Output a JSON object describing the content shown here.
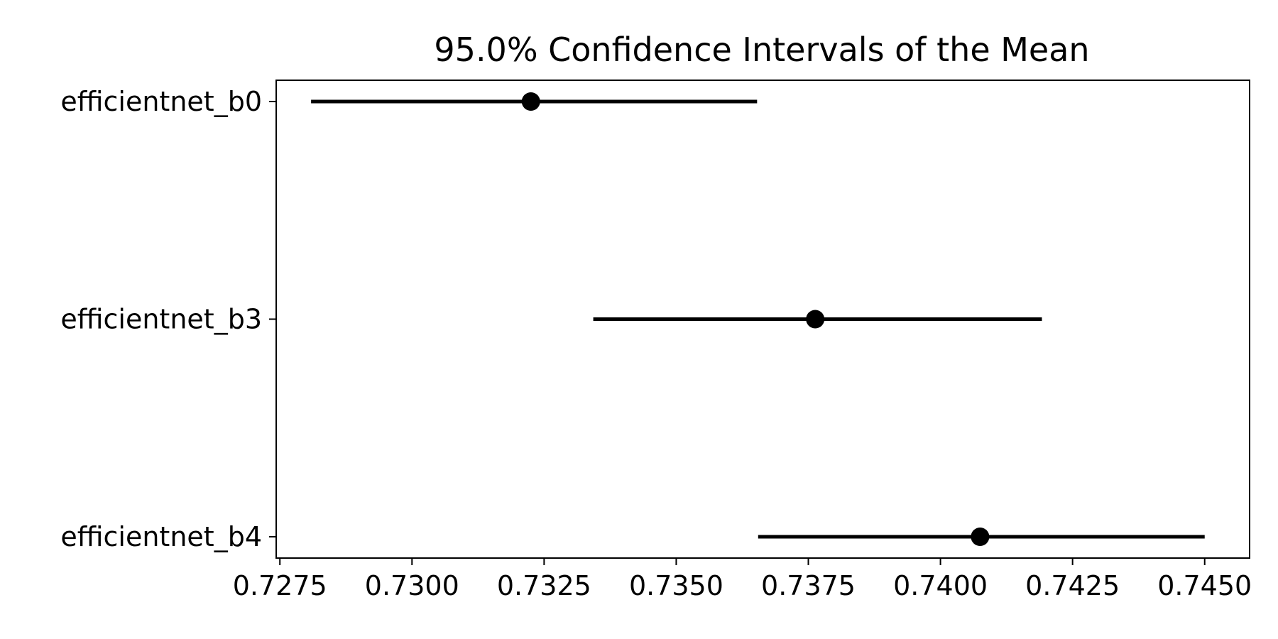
{
  "colors": {
    "background": "#ffffff",
    "axes": "#000000",
    "marks": "#000000"
  },
  "chart_data": {
    "type": "scatter",
    "subtype": "confidence-interval",
    "title": "95.0% Confidence Intervals of the Mean",
    "xlabel": "",
    "ylabel": "",
    "xlim": [
      0.72743,
      0.74585
    ],
    "x_ticks": [
      0.7275,
      0.73,
      0.7325,
      0.735,
      0.7375,
      0.74,
      0.7425,
      0.745
    ],
    "x_tick_labels": [
      "0.7275",
      "0.7300",
      "0.7325",
      "0.7350",
      "0.7375",
      "0.7400",
      "0.7425",
      "0.7450"
    ],
    "categories": [
      "efficientnet_b0",
      "efficientnet_b3",
      "efficientnet_b4"
    ],
    "mean": [
      0.73225,
      0.73763,
      0.74075
    ],
    "lower": [
      0.72809,
      0.73343,
      0.73655
    ],
    "upper": [
      0.73653,
      0.74192,
      0.745
    ],
    "grid": false,
    "legend": "none"
  }
}
